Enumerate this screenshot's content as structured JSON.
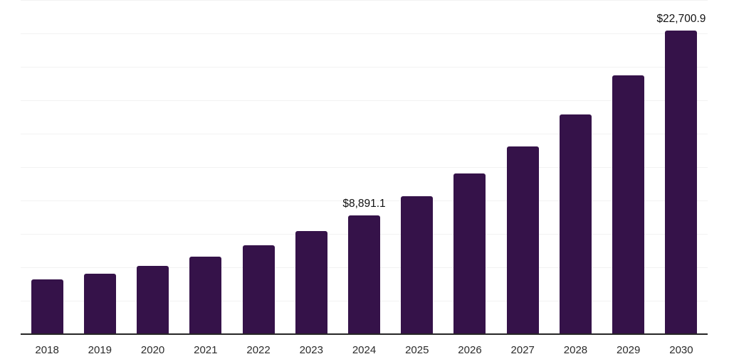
{
  "chart_data": {
    "type": "bar",
    "title": "",
    "xlabel": "",
    "ylabel": "",
    "categories": [
      "2018",
      "2019",
      "2020",
      "2021",
      "2022",
      "2023",
      "2024",
      "2025",
      "2026",
      "2027",
      "2028",
      "2029",
      "2030"
    ],
    "values": [
      4100,
      4530,
      5115,
      5810,
      6660,
      7725,
      8891.1,
      10335,
      12040,
      14065,
      16460,
      19340,
      22700.9
    ],
    "data_labels": [
      "",
      "",
      "",
      "",
      "",
      "",
      "$8,891.1",
      "",
      "",
      "",
      "",
      "",
      "$22,700.9"
    ],
    "ylim": [
      0,
      25000
    ],
    "gridline_step": 2500,
    "grid": true,
    "legend": "none",
    "colors": {
      "bar": "#351249",
      "gridline": "#f2f2f2",
      "axis": "#262626",
      "tick_text": "#2b2b2b",
      "data_label_text": "#111111",
      "background": "#ffffff"
    }
  }
}
